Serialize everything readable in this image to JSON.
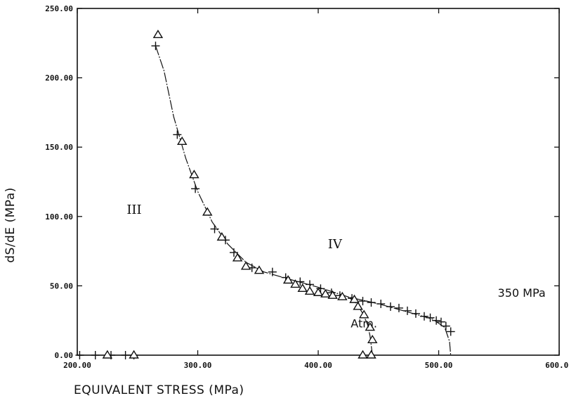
{
  "chart_data": {
    "type": "scatter",
    "xlabel": "EQUIVALENT STRESS (MPa)",
    "ylabel": "dS/dE (MPa)",
    "xlim": [
      200,
      600
    ],
    "ylim": [
      0,
      250
    ],
    "x_ticks": [
      "200.00",
      "300.00",
      "400.00",
      "500.00",
      "600.00"
    ],
    "y_ticks": [
      "0.00",
      "50.00",
      "100.00",
      "150.00",
      "200.00",
      "250.00"
    ],
    "grid": false,
    "annotations": [
      {
        "text": "III",
        "x": 241,
        "y": 102
      },
      {
        "text": "IV",
        "x": 408,
        "y": 77
      },
      {
        "text": "350 MPa",
        "x": 549,
        "y": 42
      },
      {
        "text": "Atm.",
        "x": 427,
        "y": 20
      }
    ],
    "series": [
      {
        "marker": "plus",
        "points": [
          [
            202,
            0
          ],
          [
            215,
            0
          ],
          [
            228,
            0
          ],
          [
            240,
            0
          ],
          [
            247,
            0
          ],
          [
            265,
            223
          ],
          [
            283,
            159
          ],
          [
            298,
            120
          ],
          [
            314,
            91
          ],
          [
            323,
            83
          ],
          [
            330,
            74
          ],
          [
            345,
            63
          ],
          [
            362,
            60
          ],
          [
            373,
            56
          ],
          [
            385,
            53
          ],
          [
            393,
            51
          ],
          [
            402,
            48
          ],
          [
            411,
            45
          ],
          [
            418,
            43
          ],
          [
            428,
            41
          ],
          [
            437,
            39
          ],
          [
            444,
            38
          ],
          [
            452,
            37
          ],
          [
            460,
            35
          ],
          [
            467,
            34
          ],
          [
            474,
            32
          ],
          [
            481,
            30
          ],
          [
            488,
            28
          ],
          [
            493,
            27
          ],
          [
            498,
            25
          ],
          [
            502,
            24
          ],
          [
            506,
            21
          ],
          [
            510,
            17
          ]
        ]
      },
      {
        "marker": "triangle",
        "points": [
          [
            225,
            0
          ],
          [
            247,
            0
          ],
          [
            267,
            231
          ],
          [
            287,
            154
          ],
          [
            297,
            130
          ],
          [
            308,
            103
          ],
          [
            320,
            85
          ],
          [
            333,
            70
          ],
          [
            340,
            64
          ],
          [
            351,
            61
          ],
          [
            375,
            54
          ],
          [
            381,
            51
          ],
          [
            387,
            48
          ],
          [
            393,
            46
          ],
          [
            400,
            45
          ],
          [
            406,
            44
          ],
          [
            412,
            43
          ],
          [
            420,
            42
          ],
          [
            430,
            40
          ],
          [
            433,
            35
          ],
          [
            438,
            29
          ],
          [
            443,
            20
          ],
          [
            445,
            11
          ],
          [
            437,
            0
          ],
          [
            444,
            0
          ]
        ]
      }
    ],
    "curves": [
      {
        "name": "",
        "points": [
          [
            265,
            223
          ],
          [
            272,
            205
          ],
          [
            280,
            172
          ],
          [
            290,
            142
          ],
          [
            300,
            118
          ],
          [
            312,
            96
          ],
          [
            325,
            80
          ],
          [
            340,
            67
          ],
          [
            355,
            60
          ],
          [
            375,
            55
          ],
          [
            400,
            49
          ],
          [
            425,
            42
          ],
          [
            450,
            37
          ],
          [
            475,
            31
          ],
          [
            495,
            26
          ],
          [
            505,
            20
          ],
          [
            509,
            10
          ],
          [
            510,
            0
          ]
        ]
      },
      {
        "name": "",
        "points": [
          [
            425,
            42
          ],
          [
            432,
            37
          ],
          [
            437,
            30
          ],
          [
            441,
            22
          ],
          [
            443,
            14
          ],
          [
            445,
            0
          ]
        ]
      }
    ]
  }
}
